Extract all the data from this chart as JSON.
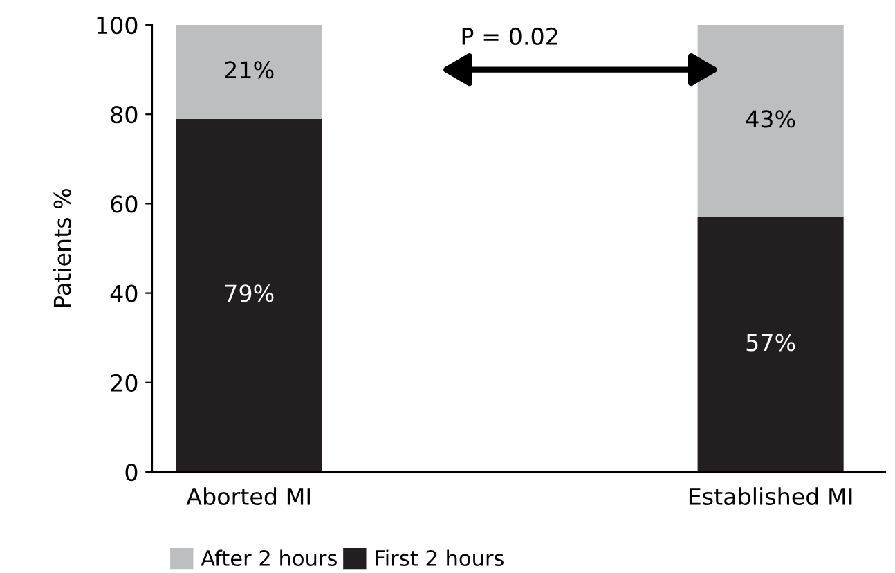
{
  "chart_data": {
    "type": "bar",
    "stacked": true,
    "ylabel": "Patients %",
    "categories": [
      "Aborted MI",
      "Established MI"
    ],
    "series": [
      {
        "name": "First 2 hours",
        "color": "#231f20",
        "values": [
          79,
          57
        ],
        "value_labels": [
          "79%",
          "57%"
        ]
      },
      {
        "name": "After 2 hours",
        "color": "#bcbec0",
        "values": [
          21,
          43
        ],
        "value_labels": [
          "21%",
          "43%"
        ]
      }
    ],
    "ylim": [
      0,
      100
    ],
    "yticks": [
      0,
      20,
      40,
      60,
      80,
      100
    ],
    "grid": false,
    "legend": "bottom",
    "annotations": [
      "P = 0.02"
    ]
  }
}
